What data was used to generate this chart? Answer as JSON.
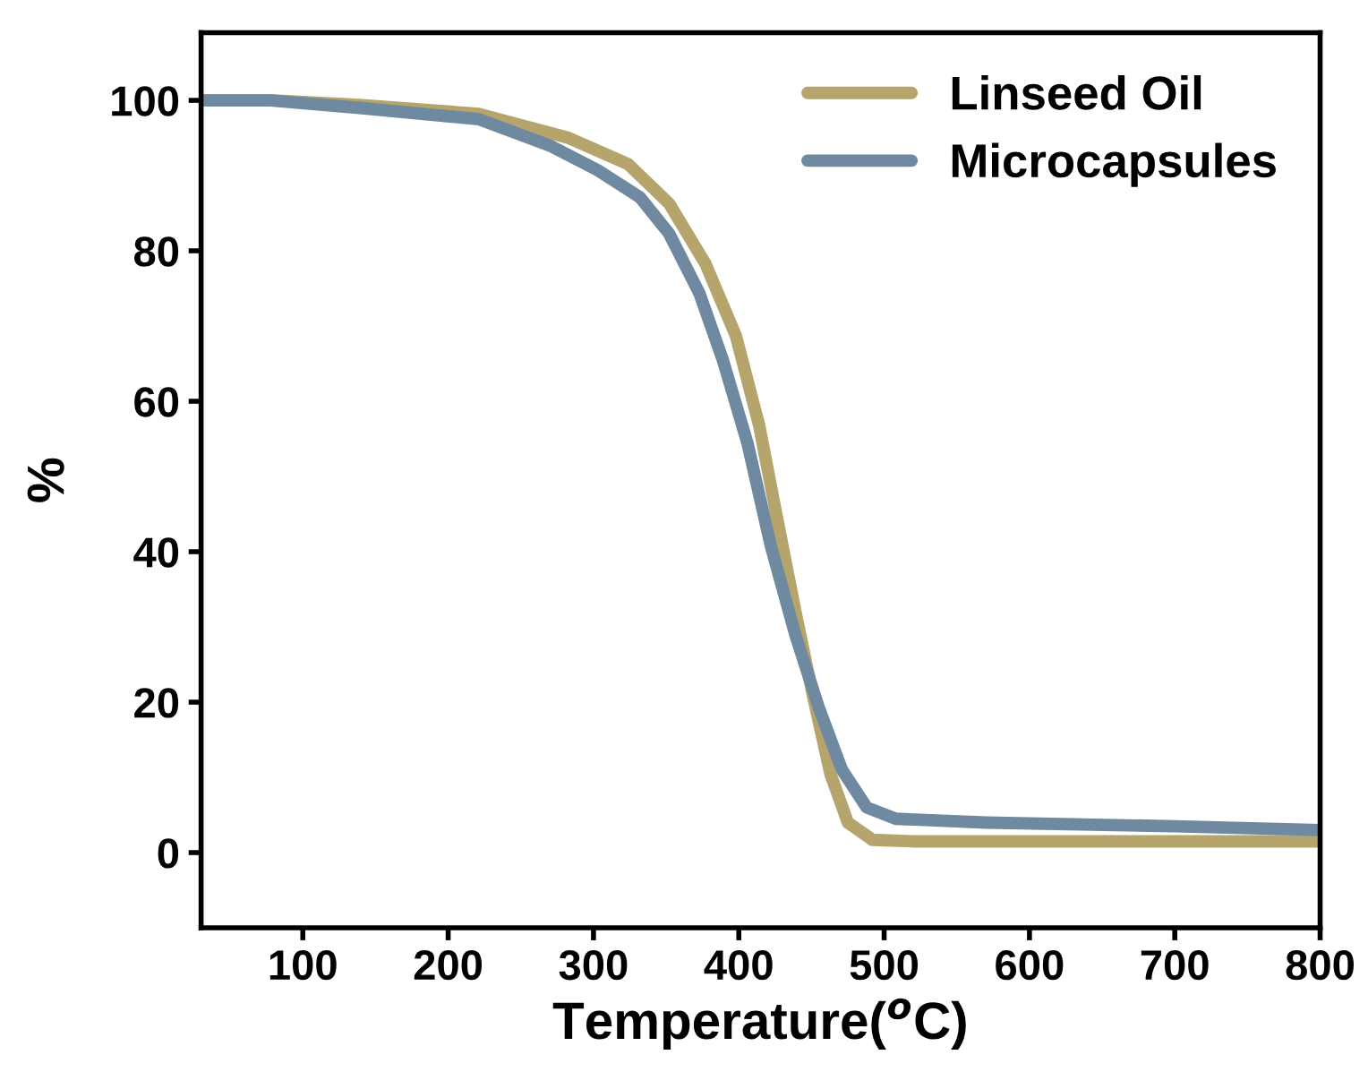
{
  "chart_data": {
    "type": "line",
    "xlabel": "Temperature($^{o}$C)",
    "ylabel": "%",
    "xlim": [
      30,
      800
    ],
    "ylim": [
      -10,
      109
    ],
    "xticks": [
      100,
      200,
      300,
      400,
      500,
      600,
      700,
      800
    ],
    "yticks": [
      0,
      20,
      40,
      60,
      80,
      100
    ],
    "legend": "top right",
    "grid": false,
    "line_style": "solid",
    "marker": "none",
    "series": [
      {
        "name": "Linseed Oil",
        "color": "#b5a56d",
        "x": [
          30,
          80,
          139,
          221,
          283,
          324,
          352,
          377,
          398,
          414,
          426,
          439,
          451,
          463,
          475,
          492,
          520,
          600,
          700,
          800
        ],
        "values": [
          100,
          100,
          99.4,
          98.2,
          95,
          91.5,
          86.3,
          78.3,
          68.7,
          56.8,
          44.8,
          32,
          20.9,
          10.5,
          4,
          1.7,
          1.5,
          1.5,
          1.5,
          1.5
        ]
      },
      {
        "name": "Microcapsules",
        "color": "#6f8aa0",
        "x": [
          30,
          78,
          139,
          221,
          271,
          303,
          332,
          352,
          373,
          389,
          406,
          422,
          439,
          455,
          471,
          488,
          508,
          570,
          700,
          800
        ],
        "values": [
          100,
          100,
          99,
          97.5,
          93.9,
          90.7,
          87.1,
          82.3,
          74.3,
          65.5,
          54.4,
          40.8,
          28.9,
          19.3,
          11,
          6,
          4.5,
          4,
          3.5,
          3
        ]
      }
    ]
  }
}
